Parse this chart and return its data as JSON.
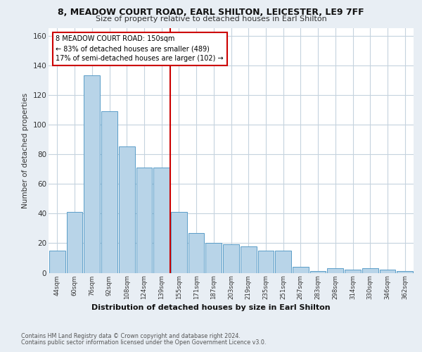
{
  "title_line1": "8, MEADOW COURT ROAD, EARL SHILTON, LEICESTER, LE9 7FF",
  "title_line2": "Size of property relative to detached houses in Earl Shilton",
  "xlabel": "Distribution of detached houses by size in Earl Shilton",
  "ylabel": "Number of detached properties",
  "categories": [
    "44sqm",
    "60sqm",
    "76sqm",
    "92sqm",
    "108sqm",
    "124sqm",
    "139sqm",
    "155sqm",
    "171sqm",
    "187sqm",
    "203sqm",
    "219sqm",
    "235sqm",
    "251sqm",
    "267sqm",
    "283sqm",
    "298sqm",
    "314sqm",
    "330sqm",
    "346sqm",
    "362sqm"
  ],
  "values": [
    15,
    41,
    133,
    109,
    85,
    71,
    71,
    41,
    27,
    20,
    19,
    18,
    15,
    15,
    4,
    1,
    3,
    2,
    3,
    2,
    1
  ],
  "bar_color": "#b8d4e8",
  "bar_edge_color": "#5a9dc8",
  "vline_x_index": 7,
  "annotation_text": "8 MEADOW COURT ROAD: 150sqm\n← 83% of detached houses are smaller (489)\n17% of semi-detached houses are larger (102) →",
  "annotation_box_color": "#ffffff",
  "annotation_border_color": "#cc0000",
  "vline_color": "#cc0000",
  "ylim": [
    0,
    165
  ],
  "yticks": [
    0,
    20,
    40,
    60,
    80,
    100,
    120,
    140,
    160
  ],
  "footer_line1": "Contains HM Land Registry data © Crown copyright and database right 2024.",
  "footer_line2": "Contains public sector information licensed under the Open Government Licence v3.0.",
  "bg_color": "#e8eef4",
  "plot_bg_color": "#ffffff",
  "grid_color": "#c5d3de"
}
